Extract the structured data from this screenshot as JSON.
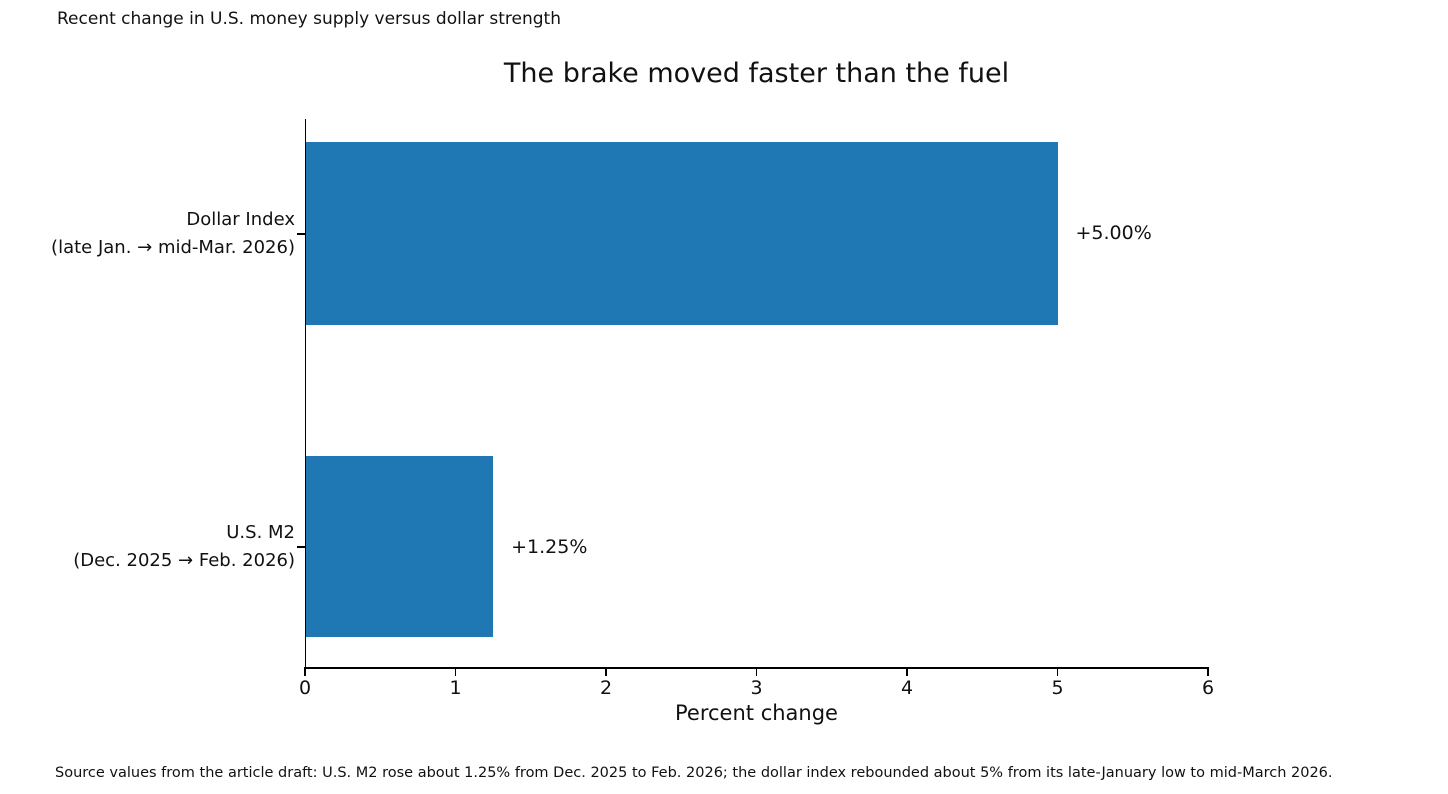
{
  "annotation": "Recent change in U.S. money supply versus dollar strength",
  "footer": "Source values from the article draft: U.S. M2 rose about 1.25% from Dec. 2025 to Feb. 2026; the dollar index rebounded about 5% from its late-January low to mid-March 2026.",
  "chart_data": {
    "type": "bar",
    "orientation": "horizontal",
    "title": "The brake moved faster than the fuel",
    "xlabel": "Percent change",
    "ylabel": "",
    "xlim": [
      0,
      6
    ],
    "x_ticks": [
      0,
      1,
      2,
      3,
      4,
      5,
      6
    ],
    "grid": false,
    "legend": "none",
    "bar_color": "#1f77b4",
    "text_color": "#111111",
    "categories": [
      {
        "name": "Dollar Index",
        "period": "(late Jan. → mid-Mar. 2026)"
      },
      {
        "name": "U.S. M2",
        "period": "(Dec. 2025 → Feb. 2026)"
      }
    ],
    "values": [
      5.0,
      1.25
    ],
    "value_labels": [
      "+5.00%",
      "+1.25%"
    ]
  }
}
